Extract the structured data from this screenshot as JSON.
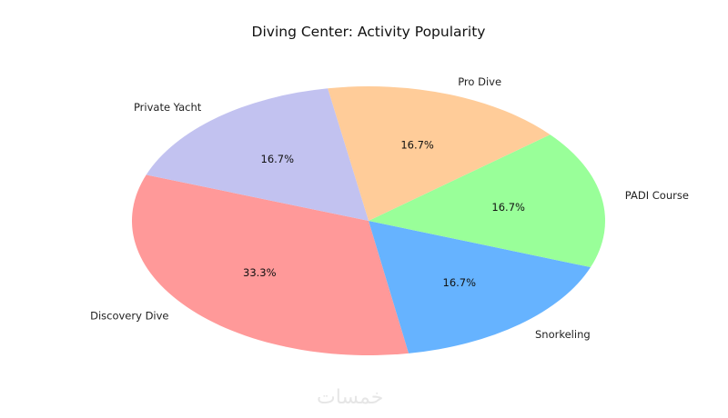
{
  "chart_data": {
    "type": "pie",
    "title": "Diving Center: Activity Popularity",
    "start_angle_deg": 160,
    "direction": "counterclockwise",
    "slices": [
      {
        "label": "Discovery Dive",
        "value": 33.3,
        "pct_label": "33.3%",
        "color": "#ff9999"
      },
      {
        "label": "Snorkeling",
        "value": 16.7,
        "pct_label": "16.7%",
        "color": "#66b3ff"
      },
      {
        "label": "PADI Course",
        "value": 16.7,
        "pct_label": "16.7%",
        "color": "#99ff99"
      },
      {
        "label": "Pro Dive",
        "value": 16.7,
        "pct_label": "16.7%",
        "color": "#ffcc99"
      },
      {
        "label": "Private Yacht",
        "value": 16.7,
        "pct_label": "16.7%",
        "color": "#c2c2f0"
      }
    ]
  },
  "watermark": {
    "text": "خمسات"
  }
}
